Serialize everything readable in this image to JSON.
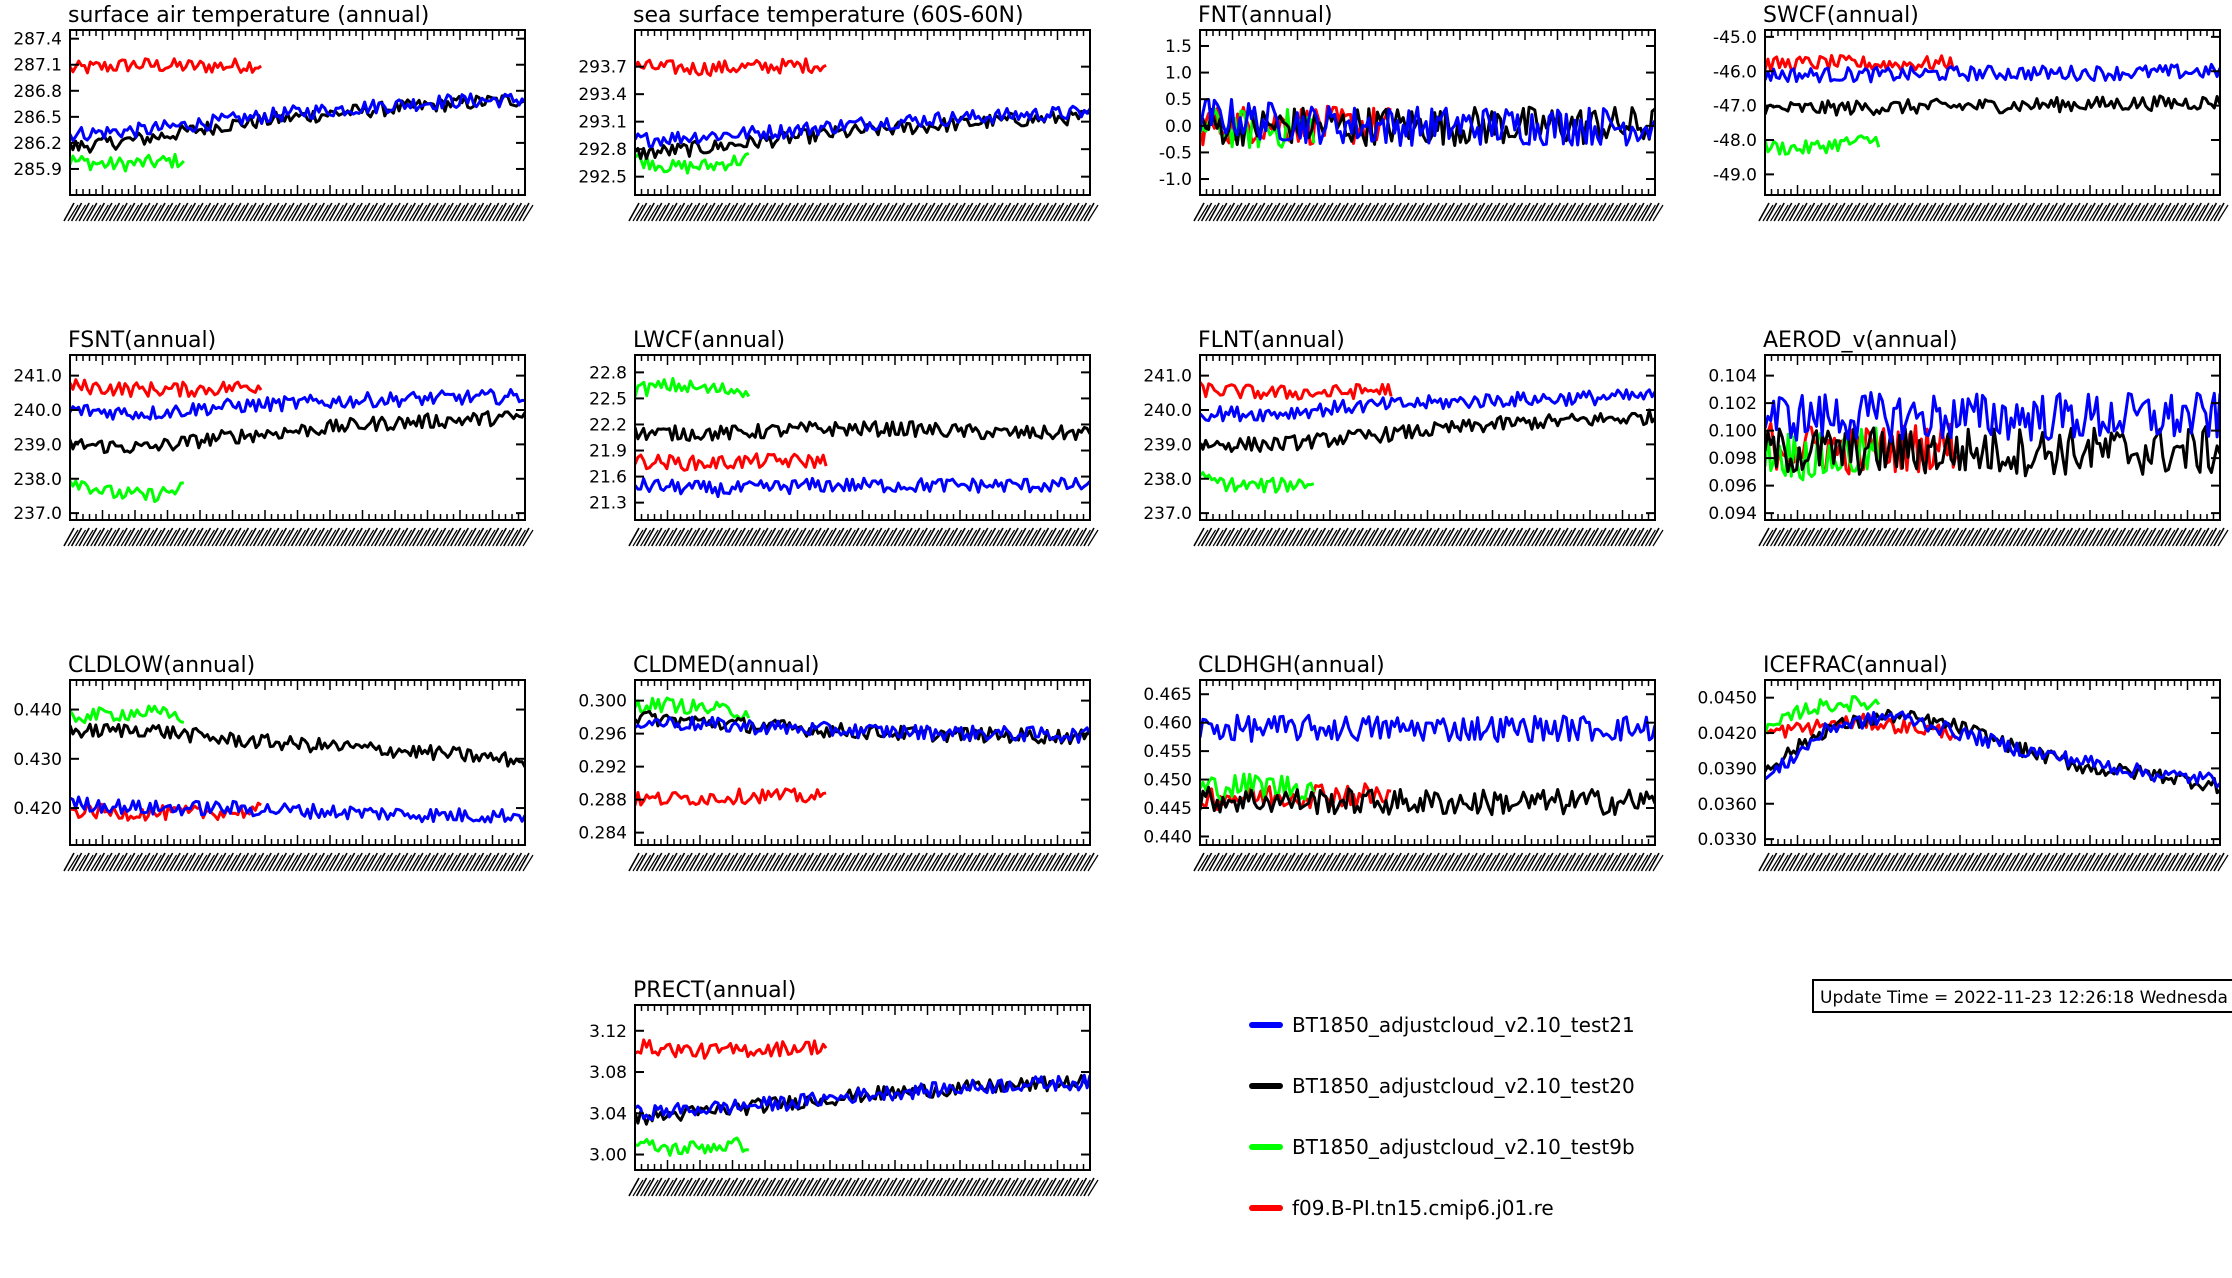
{
  "colors": {
    "test21": "#0000ff",
    "test20": "#000000",
    "test9b": "#00ff00",
    "cmip6": "#ff0000"
  },
  "legend": [
    {
      "key": "test21",
      "label": "BT1850_adjustcloud_v2.10_test21"
    },
    {
      "key": "test20",
      "label": "BT1850_adjustcloud_v2.10_test20"
    },
    {
      "key": "test9b",
      "label": "BT1850_adjustcloud_v2.10_test9b"
    },
    {
      "key": "cmip6",
      "label": "f09.B-PI.tn15.cmip6.j01.re"
    }
  ],
  "update_time": "Update Time = 2022-11-23 12:26:18 Wednesda",
  "chart_data": [
    {
      "type": "line",
      "title": "surface air temperature (annual)",
      "ylim": [
        285.6,
        287.5
      ],
      "yticks": [
        "287.4",
        "287.1",
        "286.8",
        "286.5",
        "286.2",
        "285.9"
      ],
      "ytick_values": [
        287.4,
        287.1,
        286.8,
        286.5,
        286.2,
        285.9
      ],
      "series": [
        {
          "name": "BT1850_adjustcloud_v2.10_test21",
          "x_range": [
            0,
            1
          ],
          "values": [
            286.3,
            286.35,
            286.45,
            286.55,
            286.62,
            286.68,
            286.7
          ]
        },
        {
          "name": "BT1850_adjustcloud_v2.10_test20",
          "x_range": [
            0,
            1
          ],
          "values": [
            286.15,
            286.25,
            286.4,
            286.5,
            286.58,
            286.65,
            286.7
          ]
        },
        {
          "name": "BT1850_adjustcloud_v2.10_test9b",
          "x_range": [
            0,
            0.25
          ],
          "values": [
            286.0,
            285.95,
            285.97,
            286.0
          ]
        },
        {
          "name": "f09.B-PI.tn15.cmip6.j01.re",
          "x_range": [
            0,
            0.42
          ],
          "values": [
            287.05,
            287.1,
            287.08,
            287.1
          ]
        }
      ]
    },
    {
      "type": "line",
      "title": "sea surface temperature (60S-60N)",
      "ylim": [
        292.3,
        294.1
      ],
      "yticks": [
        "293.7",
        "293.4",
        "293.1",
        "292.8",
        "292.5"
      ],
      "ytick_values": [
        293.7,
        293.4,
        293.1,
        292.8,
        292.5
      ],
      "series": [
        {
          "name": "BT1850_adjustcloud_v2.10_test21",
          "x_range": [
            0,
            1
          ],
          "values": [
            292.9,
            292.95,
            293.0,
            293.08,
            293.13,
            293.17,
            293.2
          ]
        },
        {
          "name": "BT1850_adjustcloud_v2.10_test20",
          "x_range": [
            0,
            1
          ],
          "values": [
            292.75,
            292.82,
            292.92,
            293.0,
            293.06,
            293.12,
            293.15
          ]
        },
        {
          "name": "BT1850_adjustcloud_v2.10_test9b",
          "x_range": [
            0,
            0.25
          ],
          "values": [
            292.7,
            292.6,
            292.62,
            292.7
          ]
        },
        {
          "name": "f09.B-PI.tn15.cmip6.j01.re",
          "x_range": [
            0,
            0.42
          ],
          "values": [
            293.7,
            293.68,
            293.7,
            293.72
          ]
        }
      ]
    },
    {
      "type": "line",
      "title": "FNT(annual)",
      "ylim": [
        -1.3,
        1.8
      ],
      "yticks": [
        "1.5",
        "1.0",
        "0.5",
        "0.0",
        "-0.5",
        "-1.0"
      ],
      "ytick_values": [
        1.5,
        1.0,
        0.5,
        0.0,
        -0.5,
        -1.0
      ],
      "series": [
        {
          "name": "BT1850_adjustcloud_v2.10_test21",
          "x_range": [
            0,
            1
          ],
          "values": [
            0.2,
            0.05,
            0.0,
            0.0,
            0.0,
            0.0
          ]
        },
        {
          "name": "BT1850_adjustcloud_v2.10_test20",
          "x_range": [
            0,
            1
          ],
          "values": [
            0.0,
            0.0,
            0.0,
            0.0,
            0.0,
            0.0
          ]
        },
        {
          "name": "BT1850_adjustcloud_v2.10_test9b",
          "x_range": [
            0,
            0.25
          ],
          "values": [
            0.0,
            -0.1,
            0.0
          ]
        },
        {
          "name": "f09.B-PI.tn15.cmip6.j01.re",
          "x_range": [
            0,
            0.42
          ],
          "values": [
            0.0,
            0.05,
            0.0,
            0.0
          ]
        }
      ]
    },
    {
      "type": "line",
      "title": "SWCF(annual)",
      "ylim": [
        -49.6,
        -44.8
      ],
      "yticks": [
        "-45.0",
        "-46.0",
        "-47.0",
        "-48.0",
        "-49.0"
      ],
      "ytick_values": [
        -45.0,
        -46.0,
        -47.0,
        -48.0,
        -49.0
      ],
      "series": [
        {
          "name": "BT1850_adjustcloud_v2.10_test21",
          "x_range": [
            0,
            1
          ],
          "values": [
            -46.1,
            -46.1,
            -46.05,
            -46.05,
            -46.0
          ]
        },
        {
          "name": "BT1850_adjustcloud_v2.10_test20",
          "x_range": [
            0,
            1
          ],
          "values": [
            -47.1,
            -47.05,
            -47.0,
            -46.95,
            -46.9
          ]
        },
        {
          "name": "BT1850_adjustcloud_v2.10_test9b",
          "x_range": [
            0,
            0.25
          ],
          "values": [
            -48.2,
            -48.25,
            -48.1,
            -48.0
          ]
        },
        {
          "name": "f09.B-PI.tn15.cmip6.j01.re",
          "x_range": [
            0,
            0.42
          ],
          "values": [
            -45.8,
            -45.75,
            -45.8,
            -45.75
          ]
        }
      ]
    },
    {
      "type": "line",
      "title": "FSNT(annual)",
      "ylim": [
        236.8,
        241.6
      ],
      "yticks": [
        "241.0",
        "240.0",
        "239.0",
        "238.0",
        "237.0"
      ],
      "ytick_values": [
        241.0,
        240.0,
        239.0,
        238.0,
        237.0
      ],
      "series": [
        {
          "name": "BT1850_adjustcloud_v2.10_test21",
          "x_range": [
            0,
            1
          ],
          "values": [
            240.0,
            239.9,
            240.1,
            240.2,
            240.3,
            240.35,
            240.4
          ]
        },
        {
          "name": "BT1850_adjustcloud_v2.10_test20",
          "x_range": [
            0,
            1
          ],
          "values": [
            239.0,
            238.9,
            239.2,
            239.4,
            239.6,
            239.7,
            239.8
          ]
        },
        {
          "name": "BT1850_adjustcloud_v2.10_test9b",
          "x_range": [
            0,
            0.25
          ],
          "values": [
            238.0,
            237.6,
            237.5,
            237.7
          ]
        },
        {
          "name": "f09.B-PI.tn15.cmip6.j01.re",
          "x_range": [
            0,
            0.42
          ],
          "values": [
            240.7,
            240.6,
            240.6,
            240.7
          ]
        }
      ]
    },
    {
      "type": "line",
      "title": "LWCF(annual)",
      "ylim": [
        21.1,
        23.0
      ],
      "yticks": [
        "22.8",
        "22.5",
        "22.2",
        "21.9",
        "21.6",
        "21.3"
      ],
      "ytick_values": [
        22.8,
        22.5,
        22.2,
        21.9,
        21.6,
        21.3
      ],
      "series": [
        {
          "name": "BT1850_adjustcloud_v2.10_test21",
          "x_range": [
            0,
            1
          ],
          "values": [
            21.5,
            21.45,
            21.5,
            21.5,
            21.5,
            21.5
          ]
        },
        {
          "name": "BT1850_adjustcloud_v2.10_test20",
          "x_range": [
            0,
            1
          ],
          "values": [
            22.1,
            22.1,
            22.15,
            22.15,
            22.1,
            22.1
          ]
        },
        {
          "name": "BT1850_adjustcloud_v2.10_test9b",
          "x_range": [
            0,
            0.25
          ],
          "values": [
            22.6,
            22.65,
            22.6,
            22.6
          ]
        },
        {
          "name": "f09.B-PI.tn15.cmip6.j01.re",
          "x_range": [
            0,
            0.42
          ],
          "values": [
            21.78,
            21.75,
            21.78,
            21.78
          ]
        }
      ]
    },
    {
      "type": "line",
      "title": "FLNT(annual)",
      "ylim": [
        236.8,
        241.6
      ],
      "yticks": [
        "241.0",
        "240.0",
        "239.0",
        "238.0",
        "237.0"
      ],
      "ytick_values": [
        241.0,
        240.0,
        239.0,
        238.0,
        237.0
      ],
      "series": [
        {
          "name": "BT1850_adjustcloud_v2.10_test21",
          "x_range": [
            0,
            1
          ],
          "values": [
            239.9,
            239.9,
            240.1,
            240.2,
            240.3,
            240.35,
            240.4
          ]
        },
        {
          "name": "BT1850_adjustcloud_v2.10_test20",
          "x_range": [
            0,
            1
          ],
          "values": [
            239.0,
            239.0,
            239.2,
            239.4,
            239.6,
            239.7,
            239.8
          ]
        },
        {
          "name": "BT1850_adjustcloud_v2.10_test9b",
          "x_range": [
            0,
            0.25
          ],
          "values": [
            238.0,
            237.8,
            237.8,
            237.9
          ]
        },
        {
          "name": "f09.B-PI.tn15.cmip6.j01.re",
          "x_range": [
            0,
            0.42
          ],
          "values": [
            240.6,
            240.5,
            240.5,
            240.6
          ]
        }
      ]
    },
    {
      "type": "line",
      "title": "AEROD_v(annual)",
      "ylim": [
        0.0935,
        0.1055
      ],
      "yticks": [
        "0.104",
        "0.102",
        "0.100",
        "0.098",
        "0.096",
        "0.094"
      ],
      "ytick_values": [
        0.104,
        0.102,
        0.1,
        0.098,
        0.096,
        0.094
      ],
      "series": [
        {
          "name": "BT1850_adjustcloud_v2.10_test21",
          "x_range": [
            0,
            1
          ],
          "values": [
            0.101,
            0.101,
            0.101,
            0.101,
            0.101
          ]
        },
        {
          "name": "BT1850_adjustcloud_v2.10_test20",
          "x_range": [
            0,
            1
          ],
          "values": [
            0.0985,
            0.0985,
            0.0985,
            0.0985,
            0.0985
          ]
        },
        {
          "name": "BT1850_adjustcloud_v2.10_test9b",
          "x_range": [
            0,
            0.25
          ],
          "values": [
            0.0985,
            0.098,
            0.0985
          ]
        },
        {
          "name": "f09.B-PI.tn15.cmip6.j01.re",
          "x_range": [
            0,
            0.42
          ],
          "values": [
            0.099,
            0.0985,
            0.099
          ]
        }
      ]
    },
    {
      "type": "line",
      "title": "CLDLOW(annual)",
      "ylim": [
        0.4125,
        0.446
      ],
      "yticks": [
        "0.440",
        "0.430",
        "0.420"
      ],
      "ytick_values": [
        0.44,
        0.43,
        0.42
      ],
      "series": [
        {
          "name": "BT1850_adjustcloud_v2.10_test21",
          "x_range": [
            0,
            1
          ],
          "values": [
            0.421,
            0.42,
            0.42,
            0.4195,
            0.419,
            0.4185,
            0.4185
          ]
        },
        {
          "name": "BT1850_adjustcloud_v2.10_test20",
          "x_range": [
            0,
            1
          ],
          "values": [
            0.4355,
            0.436,
            0.434,
            0.433,
            0.432,
            0.431,
            0.4295
          ]
        },
        {
          "name": "BT1850_adjustcloud_v2.10_test9b",
          "x_range": [
            0,
            0.25
          ],
          "values": [
            0.4385,
            0.439,
            0.4395,
            0.4385
          ]
        },
        {
          "name": "f09.B-PI.tn15.cmip6.j01.re",
          "x_range": [
            0,
            0.42
          ],
          "values": [
            0.4195,
            0.419,
            0.419,
            0.4195
          ]
        }
      ]
    },
    {
      "type": "line",
      "title": "CLDMED(annual)",
      "ylim": [
        0.2825,
        0.3025
      ],
      "yticks": [
        "0.300",
        "0.296",
        "0.292",
        "0.288",
        "0.284"
      ],
      "ytick_values": [
        0.3,
        0.296,
        0.292,
        0.288,
        0.284
      ],
      "series": [
        {
          "name": "BT1850_adjustcloud_v2.10_test21",
          "x_range": [
            0,
            1
          ],
          "values": [
            0.2975,
            0.297,
            0.2965,
            0.2962,
            0.296,
            0.2958
          ]
        },
        {
          "name": "BT1850_adjustcloud_v2.10_test20",
          "x_range": [
            0,
            1
          ],
          "values": [
            0.298,
            0.2972,
            0.2965,
            0.296,
            0.2958,
            0.2956
          ]
        },
        {
          "name": "BT1850_adjustcloud_v2.10_test9b",
          "x_range": [
            0,
            0.25
          ],
          "values": [
            0.2995,
            0.2995,
            0.299,
            0.2985
          ]
        },
        {
          "name": "f09.B-PI.tn15.cmip6.j01.re",
          "x_range": [
            0,
            0.42
          ],
          "values": [
            0.288,
            0.2882,
            0.2885,
            0.2883
          ]
        }
      ]
    },
    {
      "type": "line",
      "title": "CLDHGH(annual)",
      "ylim": [
        0.4385,
        0.4675
      ],
      "yticks": [
        "0.465",
        "0.460",
        "0.455",
        "0.450",
        "0.445",
        "0.440"
      ],
      "ytick_values": [
        0.465,
        0.46,
        0.455,
        0.45,
        0.445,
        0.44
      ],
      "series": [
        {
          "name": "BT1850_adjustcloud_v2.10_test21",
          "x_range": [
            0,
            1
          ],
          "values": [
            0.459,
            0.459,
            0.459,
            0.459,
            0.459
          ]
        },
        {
          "name": "BT1850_adjustcloud_v2.10_test20",
          "x_range": [
            0,
            1
          ],
          "values": [
            0.4465,
            0.4462,
            0.446,
            0.446,
            0.4462
          ]
        },
        {
          "name": "BT1850_adjustcloud_v2.10_test9b",
          "x_range": [
            0,
            0.25
          ],
          "values": [
            0.4485,
            0.449,
            0.4485
          ]
        },
        {
          "name": "f09.B-PI.tn15.cmip6.j01.re",
          "x_range": [
            0,
            0.42
          ],
          "values": [
            0.447,
            0.447,
            0.4475,
            0.447
          ]
        }
      ]
    },
    {
      "type": "line",
      "title": "ICEFRAC(annual)",
      "ylim": [
        0.0325,
        0.0465
      ],
      "yticks": [
        "0.0450",
        "0.0420",
        "0.0390",
        "0.0360",
        "0.0330"
      ],
      "ytick_values": [
        0.045,
        0.042,
        0.039,
        0.036,
        0.033
      ],
      "series": [
        {
          "name": "BT1850_adjustcloud_v2.10_test21",
          "x_range": [
            0,
            1
          ],
          "values": [
            0.038,
            0.0425,
            0.0435,
            0.042,
            0.0405,
            0.0395,
            0.0385,
            0.038
          ]
        },
        {
          "name": "BT1850_adjustcloud_v2.10_test20",
          "x_range": [
            0,
            1
          ],
          "values": [
            0.039,
            0.0425,
            0.0435,
            0.0425,
            0.0405,
            0.039,
            0.0385,
            0.0375
          ]
        },
        {
          "name": "BT1850_adjustcloud_v2.10_test9b",
          "x_range": [
            0,
            0.25
          ],
          "values": [
            0.042,
            0.044,
            0.0445,
            0.0445
          ]
        },
        {
          "name": "f09.B-PI.tn15.cmip6.j01.re",
          "x_range": [
            0,
            0.42
          ],
          "values": [
            0.042,
            0.0425,
            0.043,
            0.0425,
            0.042
          ]
        }
      ]
    },
    {
      "type": "line",
      "title": "PRECT(annual)",
      "ylim": [
        2.985,
        3.145
      ],
      "yticks": [
        "3.12",
        "3.08",
        "3.04",
        "3.00"
      ],
      "ytick_values": [
        3.12,
        3.08,
        3.04,
        3.0
      ],
      "series": [
        {
          "name": "BT1850_adjustcloud_v2.10_test21",
          "x_range": [
            0,
            1
          ],
          "values": [
            3.04,
            3.045,
            3.05,
            3.058,
            3.063,
            3.068,
            3.07
          ]
        },
        {
          "name": "BT1850_adjustcloud_v2.10_test20",
          "x_range": [
            0,
            1
          ],
          "values": [
            3.035,
            3.042,
            3.05,
            3.058,
            3.063,
            3.067,
            3.07
          ]
        },
        {
          "name": "BT1850_adjustcloud_v2.10_test9b",
          "x_range": [
            0,
            0.25
          ],
          "values": [
            3.01,
            3.005,
            3.008,
            3.01
          ]
        },
        {
          "name": "f09.B-PI.tn15.cmip6.j01.re",
          "x_range": [
            0,
            0.42
          ],
          "values": [
            3.105,
            3.1,
            3.102,
            3.105
          ]
        }
      ]
    }
  ]
}
